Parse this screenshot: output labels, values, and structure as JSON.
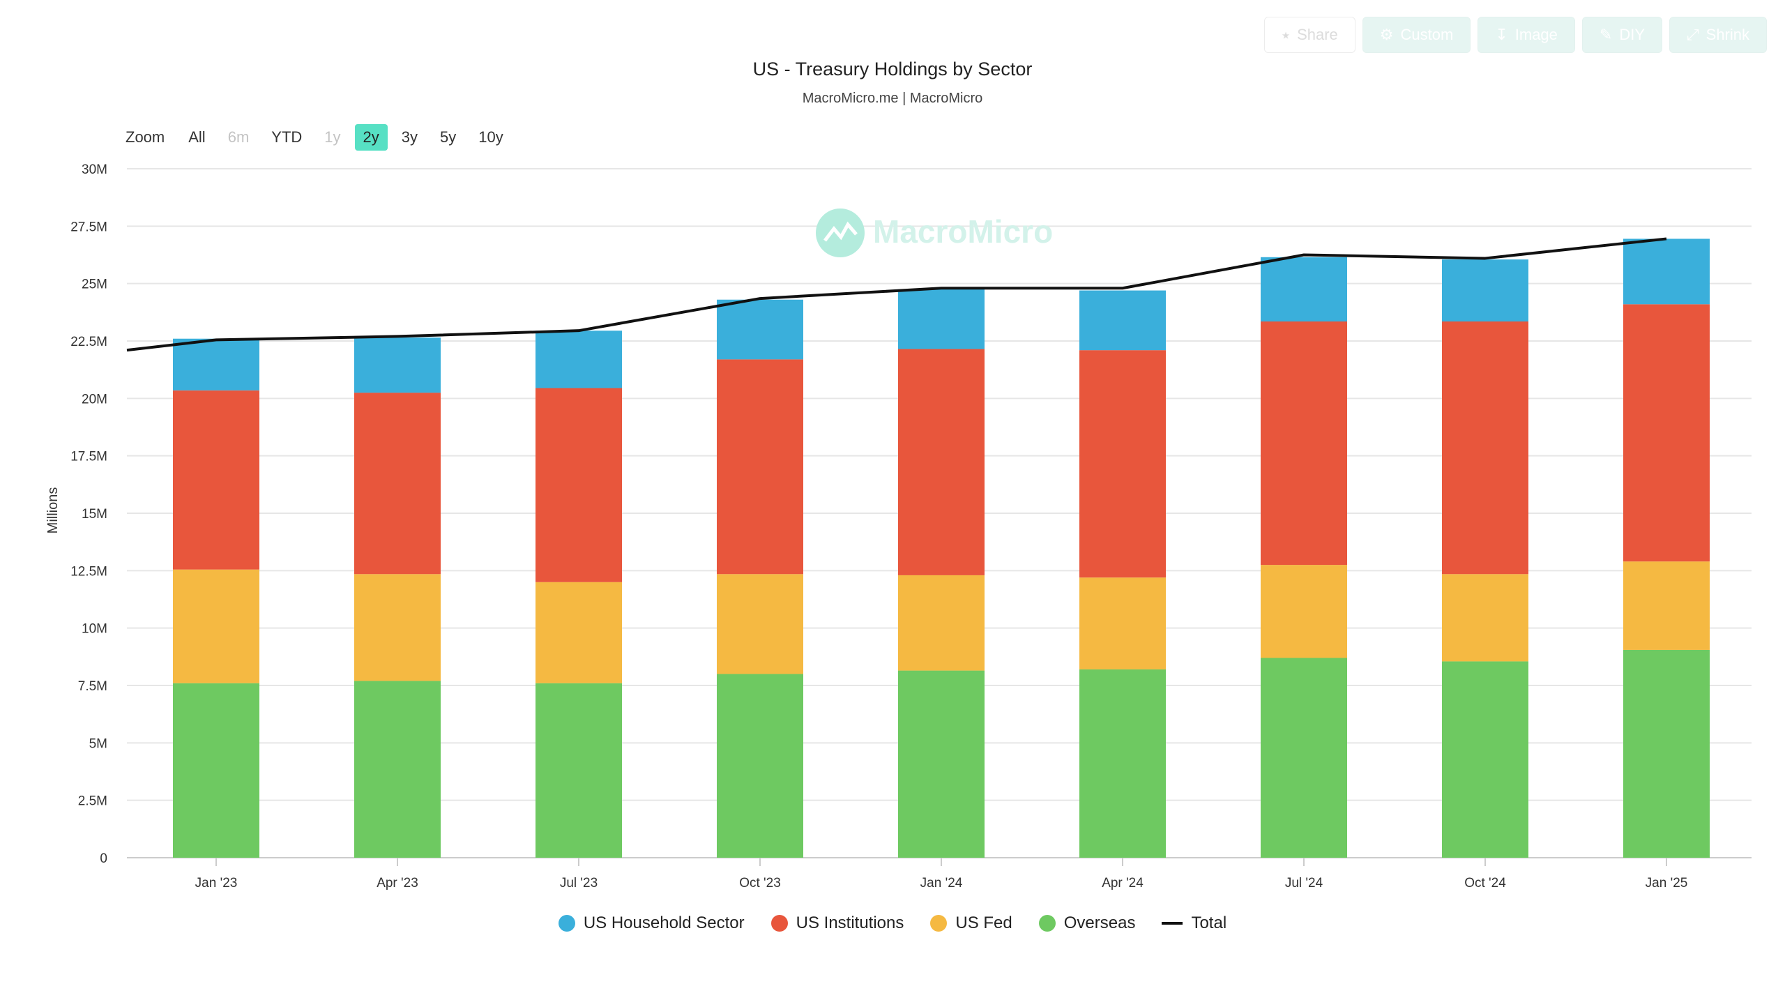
{
  "toolbar": {
    "share": "Share",
    "custom": "Custom",
    "image": "Image",
    "diy": "DIY",
    "shrink": "Shrink"
  },
  "header": {
    "title": "US - Treasury Holdings by Sector",
    "subtitle": "MacroMicro.me | MacroMicro"
  },
  "watermark": "MacroMicro",
  "zoom": {
    "label": "Zoom",
    "options": [
      "All",
      "6m",
      "YTD",
      "1y",
      "2y",
      "3y",
      "5y",
      "10y"
    ],
    "selected": "2y",
    "disabled": [
      "6m",
      "1y"
    ]
  },
  "colors": {
    "household": "#3aafdb",
    "institutions": "#e8563c",
    "fed": "#f5b942",
    "overseas": "#6ec961",
    "total": "#111111",
    "watermark": "#8fe3cf"
  },
  "chart_data": {
    "type": "bar",
    "stacked": true,
    "ylabel": "Millions",
    "ylim": [
      0,
      30
    ],
    "yticks": [
      "0",
      "2.5M",
      "5M",
      "7.5M",
      "10M",
      "12.5M",
      "15M",
      "17.5M",
      "20M",
      "22.5M",
      "25M",
      "27.5M",
      "30M"
    ],
    "categories": [
      "Jan '23",
      "Apr '23",
      "Jul '23",
      "Oct '23",
      "Jan '24",
      "Apr '24",
      "Jul '24",
      "Oct '24",
      "Jan '25"
    ],
    "series": [
      {
        "name": "Overseas",
        "key": "overseas",
        "values": [
          7.6,
          7.7,
          7.6,
          8.0,
          8.15,
          8.2,
          8.7,
          8.55,
          9.05
        ]
      },
      {
        "name": "US Fed",
        "key": "fed",
        "values": [
          4.95,
          4.65,
          4.4,
          4.35,
          4.15,
          4.0,
          4.05,
          3.8,
          3.85
        ]
      },
      {
        "name": "US Institutions",
        "key": "institutions",
        "values": [
          7.8,
          7.9,
          8.45,
          9.35,
          9.85,
          9.9,
          10.6,
          11.0,
          11.2
        ]
      },
      {
        "name": "US Household Sector",
        "key": "household",
        "values": [
          2.25,
          2.4,
          2.5,
          2.6,
          2.6,
          2.6,
          2.8,
          2.7,
          2.85
        ]
      }
    ],
    "line": {
      "name": "Total",
      "x": [
        -0.5,
        0,
        1,
        2,
        3,
        4,
        5,
        6,
        7,
        8
      ],
      "values": [
        22.1,
        22.55,
        22.7,
        22.95,
        24.35,
        24.8,
        24.8,
        26.25,
        26.1,
        26.95
      ]
    },
    "legend": [
      "US Household Sector",
      "US Institutions",
      "US Fed",
      "Overseas",
      "Total"
    ],
    "legend_position": "bottom",
    "grid": true
  }
}
